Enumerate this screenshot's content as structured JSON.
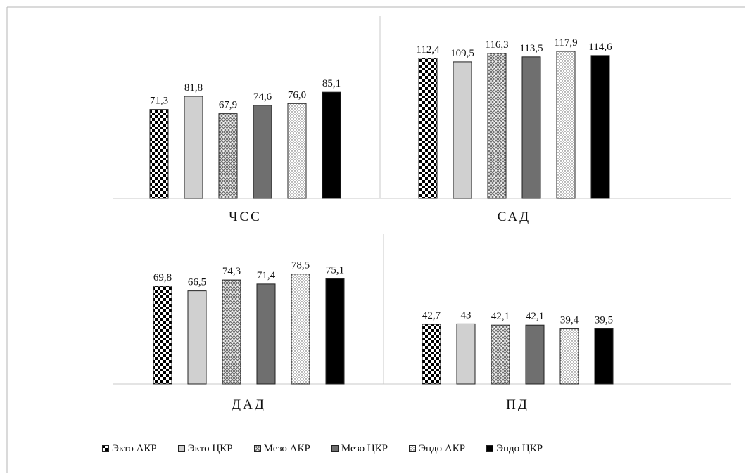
{
  "chart_data": {
    "type": "bar",
    "legend_position": "bottom",
    "grid": false,
    "series_names": [
      "Экто АКР",
      "Экто ЦКР",
      "Мезо АКР",
      "Мезо ЦКР",
      "Эндо АКР",
      "Эндо ЦКР"
    ],
    "series_fills": [
      "checker",
      "#d0d0d0",
      "crosshatch",
      "#6f6f6f",
      "dots",
      "#000000"
    ],
    "panels": [
      {
        "title": "ЧСС",
        "values": [
          71.3,
          81.8,
          67.9,
          74.6,
          76.0,
          85.1
        ],
        "labels": [
          "71,3",
          "81,8",
          "67,9",
          "74,6",
          "76,0",
          "85,1"
        ],
        "ylim": [
          0,
          145
        ]
      },
      {
        "title": "САД",
        "values": [
          112.4,
          109.5,
          116.3,
          113.5,
          117.9,
          114.6
        ],
        "labels": [
          "112,4",
          "109,5",
          "116,3",
          "113,5",
          "117,9",
          "114,6"
        ],
        "ylim": [
          0,
          145
        ]
      },
      {
        "title": "ДАД",
        "values": [
          69.8,
          66.5,
          74.3,
          71.4,
          78.5,
          75.1
        ],
        "labels": [
          "69,8",
          "66,5",
          "74,3",
          "71,4",
          "78,5",
          "75,1"
        ],
        "ylim": [
          0,
          106
        ]
      },
      {
        "title": "ПД",
        "values": [
          42.7,
          43,
          42.1,
          42.1,
          39.4,
          39.5
        ],
        "labels": [
          "42,7",
          "43",
          "42,1",
          "42,1",
          "39,4",
          "39,5"
        ],
        "ylim": [
          0,
          106
        ]
      }
    ]
  }
}
